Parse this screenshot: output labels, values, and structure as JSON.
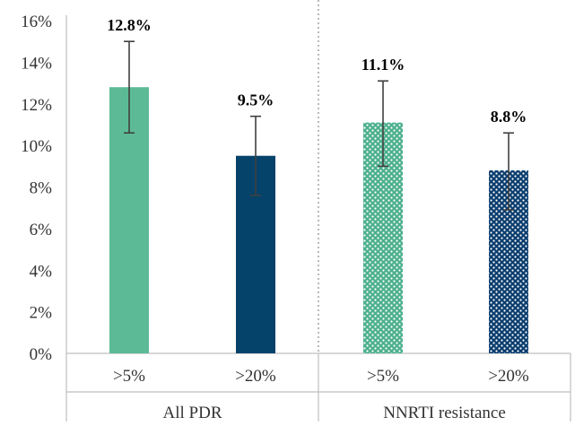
{
  "chart_data": {
    "type": "bar",
    "groups": [
      "All PDR",
      "NNRTI resistance"
    ],
    "categories": [
      ">5%",
      ">20%",
      ">5%",
      ">20%"
    ],
    "values": [
      12.8,
      9.5,
      11.1,
      8.8
    ],
    "error_low": [
      10.6,
      7.6,
      9.0,
      6.9
    ],
    "error_high": [
      15.0,
      11.4,
      13.1,
      10.6
    ],
    "data_labels": [
      "12.8%",
      "9.5%",
      "11.1%",
      "8.8%"
    ],
    "ylim": [
      0,
      16
    ],
    "yticks": [
      "0%",
      "2%",
      "4%",
      "6%",
      "8%",
      "10%",
      "12%",
      "14%",
      "16%"
    ],
    "bar_colors": [
      "#5cbb96",
      "#06436a",
      "#5cbb96",
      "#0a3d6e"
    ],
    "bar_patterns": [
      "solid",
      "solid",
      "dotted",
      "dotted"
    ],
    "grid": false,
    "group_separator": "dotted"
  }
}
